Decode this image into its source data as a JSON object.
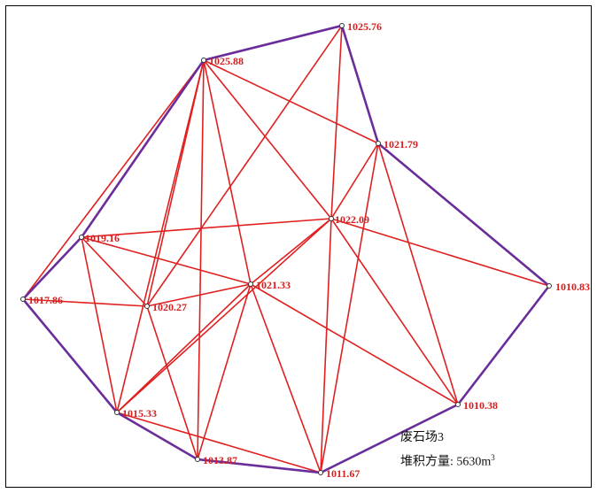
{
  "title": "废石场3",
  "volume_label": "堆积方量:",
  "volume_value": "5630m",
  "volume_unit_sup": "3",
  "points": [
    {
      "id": "p1",
      "label": "1025.76"
    },
    {
      "id": "p2",
      "label": "1025.88"
    },
    {
      "id": "p3",
      "label": "1021.79"
    },
    {
      "id": "p4",
      "label": "1022.09"
    },
    {
      "id": "p5",
      "label": "1019.16"
    },
    {
      "id": "p6",
      "label": "1017.86"
    },
    {
      "id": "p7",
      "label": "1020.27"
    },
    {
      "id": "p8",
      "label": "1021.33"
    },
    {
      "id": "p9",
      "label": "1010.83"
    },
    {
      "id": "p10",
      "label": "1010.38"
    },
    {
      "id": "p11",
      "label": "1015.33"
    },
    {
      "id": "p12",
      "label": "1013.87"
    },
    {
      "id": "p13",
      "label": "1011.67"
    }
  ],
  "colors": {
    "edges": "#e02020",
    "boundary": "#6a2d9a",
    "labels": "#d42020"
  }
}
